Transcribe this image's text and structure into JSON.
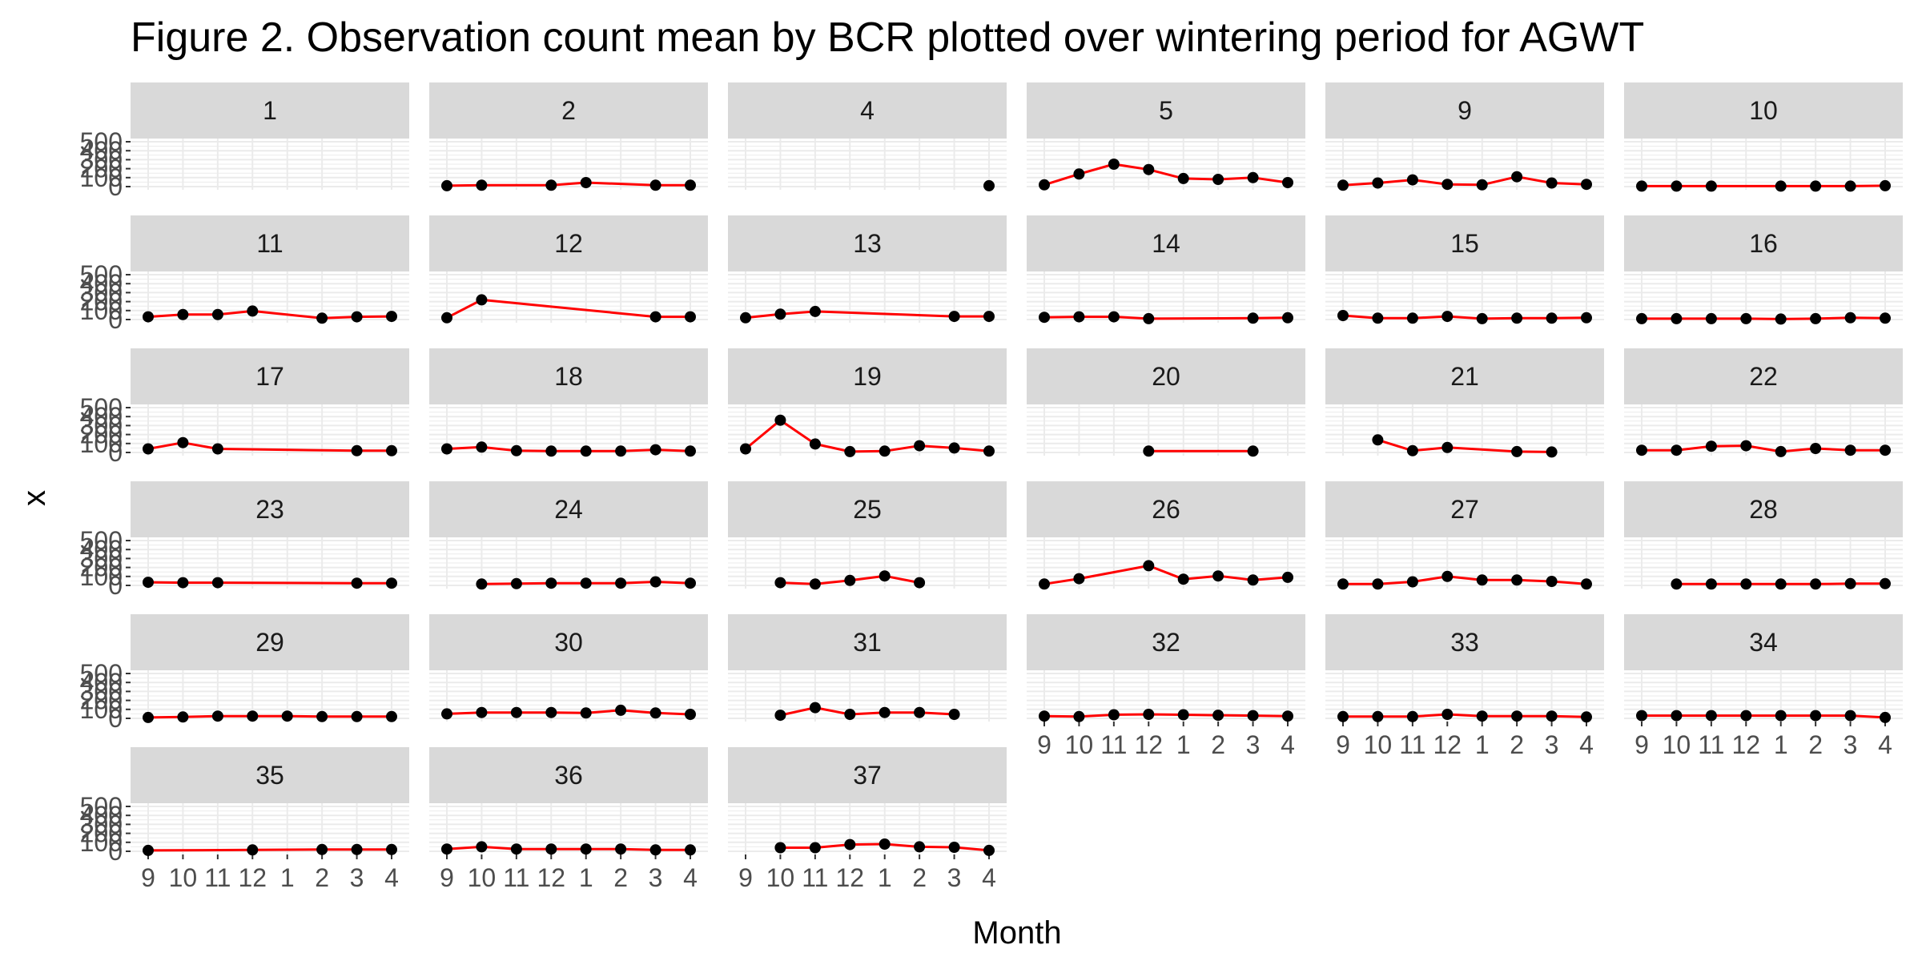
{
  "chart_data": {
    "type": "line",
    "title": "Figure 2. Observation count mean by BCR plotted over wintering period for AGWT",
    "xlabel": "Month",
    "ylabel": "x",
    "facet_by": "BCR",
    "x_categories": [
      "9",
      "10",
      "11",
      "12",
      "1",
      "2",
      "3",
      "4"
    ],
    "y_ticks": [
      0,
      100,
      200,
      300,
      400,
      500
    ],
    "y_tick_labels": [
      "0",
      "100",
      "200",
      "300",
      "400",
      "500"
    ],
    "ylim": [
      0,
      500
    ],
    "grid": true,
    "line_color": "#ff0000",
    "point_color": "#000000",
    "panel_background": "#ffffff",
    "grid_color": "#ebebeb",
    "strip_background": "#d9d9d9",
    "layout": {
      "rows": 6,
      "cols": 6
    },
    "facets": [
      {
        "bcr": "1",
        "values": [
          null,
          null,
          null,
          null,
          null,
          null,
          null,
          null
        ]
      },
      {
        "bcr": "2",
        "values": [
          10,
          15,
          null,
          15,
          45,
          null,
          15,
          15
        ]
      },
      {
        "bcr": "4",
        "values": [
          null,
          null,
          null,
          null,
          null,
          null,
          null,
          10
        ]
      },
      {
        "bcr": "5",
        "values": [
          20,
          140,
          250,
          190,
          90,
          80,
          100,
          45
        ]
      },
      {
        "bcr": "9",
        "values": [
          15,
          40,
          75,
          25,
          20,
          110,
          40,
          25
        ]
      },
      {
        "bcr": "10",
        "values": [
          5,
          5,
          5,
          null,
          5,
          5,
          5,
          10
        ]
      },
      {
        "bcr": "11",
        "values": [
          30,
          55,
          55,
          95,
          null,
          15,
          30,
          35
        ]
      },
      {
        "bcr": "12",
        "values": [
          20,
          220,
          null,
          null,
          null,
          null,
          30,
          30
        ]
      },
      {
        "bcr": "13",
        "values": [
          20,
          60,
          90,
          null,
          null,
          null,
          35,
          35
        ]
      },
      {
        "bcr": "14",
        "values": [
          25,
          30,
          30,
          10,
          null,
          null,
          15,
          20
        ]
      },
      {
        "bcr": "15",
        "values": [
          45,
          15,
          15,
          35,
          10,
          15,
          15,
          20
        ]
      },
      {
        "bcr": "16",
        "values": [
          10,
          10,
          10,
          10,
          5,
          10,
          20,
          15
        ]
      },
      {
        "bcr": "17",
        "values": [
          40,
          110,
          40,
          null,
          null,
          null,
          20,
          20
        ]
      },
      {
        "bcr": "18",
        "values": [
          40,
          60,
          20,
          15,
          15,
          15,
          30,
          15
        ]
      },
      {
        "bcr": "19",
        "values": [
          40,
          360,
          95,
          10,
          15,
          75,
          50,
          15
        ]
      },
      {
        "bcr": "20",
        "values": [
          null,
          null,
          null,
          15,
          null,
          null,
          15,
          null
        ]
      },
      {
        "bcr": "21",
        "values": [
          null,
          140,
          20,
          55,
          null,
          10,
          5,
          null
        ]
      },
      {
        "bcr": "22",
        "values": [
          25,
          25,
          70,
          75,
          10,
          45,
          25,
          25
        ]
      },
      {
        "bcr": "23",
        "values": [
          35,
          30,
          30,
          null,
          null,
          null,
          25,
          25
        ]
      },
      {
        "bcr": "24",
        "values": [
          null,
          15,
          20,
          25,
          25,
          25,
          40,
          25
        ]
      },
      {
        "bcr": "25",
        "values": [
          null,
          30,
          15,
          55,
          105,
          30,
          null,
          null
        ]
      },
      {
        "bcr": "26",
        "values": [
          15,
          75,
          null,
          220,
          70,
          105,
          60,
          90
        ]
      },
      {
        "bcr": "27",
        "values": [
          15,
          15,
          40,
          100,
          60,
          60,
          45,
          15
        ]
      },
      {
        "bcr": "28",
        "values": [
          null,
          15,
          15,
          15,
          15,
          15,
          20,
          20
        ]
      },
      {
        "bcr": "29",
        "values": [
          10,
          15,
          25,
          25,
          25,
          20,
          20,
          20
        ]
      },
      {
        "bcr": "30",
        "values": [
          50,
          65,
          65,
          65,
          60,
          90,
          60,
          45
        ]
      },
      {
        "bcr": "31",
        "values": [
          null,
          35,
          120,
          45,
          65,
          65,
          45,
          null
        ]
      },
      {
        "bcr": "32",
        "values": [
          25,
          20,
          40,
          45,
          40,
          35,
          30,
          25
        ]
      },
      {
        "bcr": "33",
        "values": [
          20,
          20,
          20,
          45,
          25,
          25,
          25,
          15
        ]
      },
      {
        "bcr": "34",
        "values": [
          30,
          30,
          30,
          30,
          30,
          30,
          30,
          10
        ]
      },
      {
        "bcr": "35",
        "values": [
          10,
          null,
          null,
          15,
          null,
          20,
          20,
          20
        ]
      },
      {
        "bcr": "36",
        "values": [
          25,
          50,
          25,
          25,
          25,
          25,
          15,
          15
        ]
      },
      {
        "bcr": "37",
        "values": [
          null,
          40,
          40,
          75,
          80,
          50,
          45,
          10
        ]
      }
    ]
  }
}
